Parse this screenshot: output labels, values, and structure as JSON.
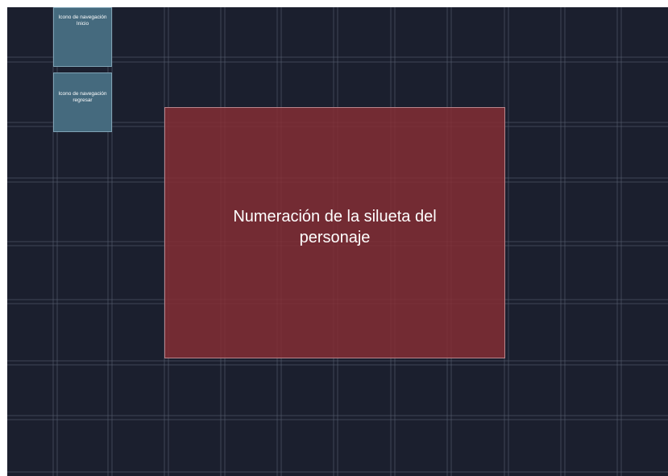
{
  "nav": {
    "home_label": "Icono de navegación Inicio",
    "back_label": "Icono de navegación regresar"
  },
  "main": {
    "silhouette_label": "Numeración de la silueta del personaje"
  },
  "colors": {
    "background": "#1b1f2e",
    "grid_line": "#5c6478",
    "nav_button": "#456a7e",
    "silhouette_area": "#872e34"
  }
}
